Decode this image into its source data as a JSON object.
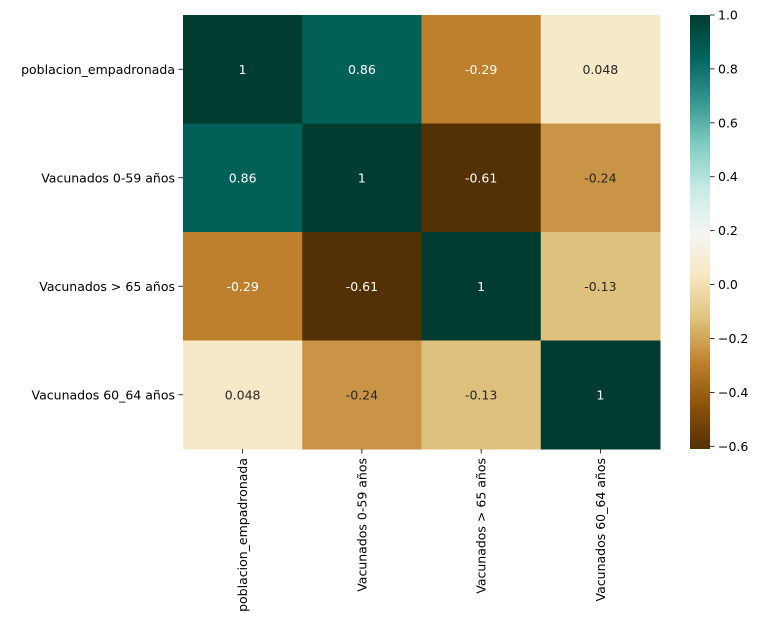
{
  "chart_data": {
    "type": "heatmap",
    "title": "",
    "xlabel": "",
    "ylabel": "",
    "row_labels": [
      "poblacion_empadronada",
      "Vacunados 0-59 años",
      "Vacunados > 65 años",
      "Vacunados 60_64 años"
    ],
    "col_labels": [
      "poblacion_empadronada",
      "Vacunados 0-59 años",
      "Vacunados > 65 años",
      "Vacunados 60_64 años"
    ],
    "values": [
      [
        1,
        0.86,
        -0.29,
        0.048
      ],
      [
        0.86,
        1,
        -0.61,
        -0.24
      ],
      [
        -0.29,
        -0.61,
        1,
        -0.13
      ],
      [
        0.048,
        -0.24,
        -0.13,
        1
      ]
    ],
    "cell_labels": [
      [
        "1",
        "0.86",
        "-0.29",
        "0.048"
      ],
      [
        "0.86",
        "1",
        "-0.61",
        "-0.24"
      ],
      [
        "-0.29",
        "-0.61",
        "1",
        "-0.13"
      ],
      [
        "0.048",
        "-0.24",
        "-0.13",
        "1"
      ]
    ],
    "colormap": "BrBG",
    "vmin": -0.61,
    "vmax": 1.0,
    "colorbar": {
      "ticks": [
        1.0,
        0.8,
        0.6,
        0.4,
        0.2,
        0.0,
        -0.2,
        -0.4,
        -0.6
      ],
      "tick_labels": [
        "1.0",
        "0.8",
        "0.6",
        "0.4",
        "0.2",
        "0.0",
        "−0.2",
        "−0.4",
        "−0.6"
      ]
    },
    "grid": false,
    "legend": "colorbar-right"
  }
}
